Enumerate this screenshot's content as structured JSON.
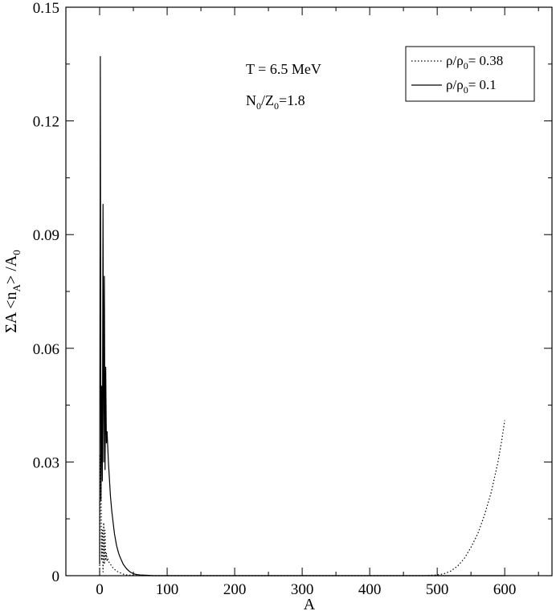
{
  "chart_data": {
    "type": "line",
    "xlabel": "A",
    "ylabel": {
      "prefix": "ΣA <n",
      "sub1": "A",
      "mid": "> /A",
      "sub2": "0"
    },
    "xlim": [
      -50,
      670
    ],
    "ylim": [
      0,
      0.15
    ],
    "xticks": [
      0,
      100,
      200,
      300,
      400,
      500,
      600
    ],
    "xtick_labels": [
      "0",
      "100",
      "200",
      "300",
      "400",
      "500",
      "600"
    ],
    "yticks": [
      0,
      0.03,
      0.06,
      0.09,
      0.12,
      0.15
    ],
    "ytick_labels": [
      "0",
      "0.03",
      "0.06",
      "0.09",
      "0.12",
      "0.15"
    ],
    "grid": false,
    "legend_placement": "top-right",
    "annotations": [
      {
        "text": "T = 6.5 MeV"
      },
      {
        "text_main": "N",
        "sub1": "0",
        "mid": "/Z",
        "sub2": "0",
        "tail": "=1.8"
      }
    ],
    "series": [
      {
        "name": "ρ/ρ0= 0.38",
        "name_parts": {
          "a": "ρ/ρ",
          "sub": "0",
          "b": "= 0.38"
        },
        "style": "dotted",
        "color": "#000000",
        "x": [
          0,
          1,
          2,
          3,
          4,
          5,
          6,
          7,
          8,
          9,
          10,
          11,
          12,
          14,
          16,
          18,
          20,
          25,
          30,
          35,
          40,
          50,
          60,
          100,
          450,
          480,
          500,
          510,
          520,
          530,
          540,
          550,
          560,
          570,
          580,
          590,
          595,
          600
        ],
        "y": [
          0.0,
          0.032,
          0.026,
          0.004,
          0.012,
          0.001,
          0.014,
          0.003,
          0.012,
          0.004,
          0.006,
          0.004,
          0.0045,
          0.0035,
          0.003,
          0.0025,
          0.002,
          0.0012,
          0.0008,
          0.0004,
          0.0002,
          0.0001,
          0.0,
          0.0,
          0.0,
          0.0,
          0.0002,
          0.0005,
          0.0012,
          0.0025,
          0.0045,
          0.0075,
          0.011,
          0.016,
          0.022,
          0.03,
          0.035,
          0.041
        ]
      },
      {
        "name": "ρ/ρ0= 0.1",
        "name_parts": {
          "a": "ρ/ρ",
          "sub": "0",
          "b": "= 0.1"
        },
        "style": "solid",
        "color": "#000000",
        "x": [
          0,
          1,
          2,
          3,
          4,
          5,
          6,
          7,
          8,
          9,
          10,
          11,
          12,
          13,
          14,
          15,
          16,
          18,
          20,
          22,
          25,
          28,
          30,
          35,
          40,
          45,
          50,
          55,
          60,
          70,
          80,
          100,
          600
        ],
        "y": [
          0.003,
          0.137,
          0.02,
          0.05,
          0.025,
          0.098,
          0.03,
          0.079,
          0.028,
          0.055,
          0.035,
          0.038,
          0.034,
          0.03,
          0.027,
          0.024,
          0.021,
          0.017,
          0.014,
          0.011,
          0.008,
          0.006,
          0.005,
          0.003,
          0.0018,
          0.001,
          0.0005,
          0.0003,
          0.0002,
          0.0001,
          0.0,
          0.0,
          0.0
        ]
      }
    ]
  }
}
